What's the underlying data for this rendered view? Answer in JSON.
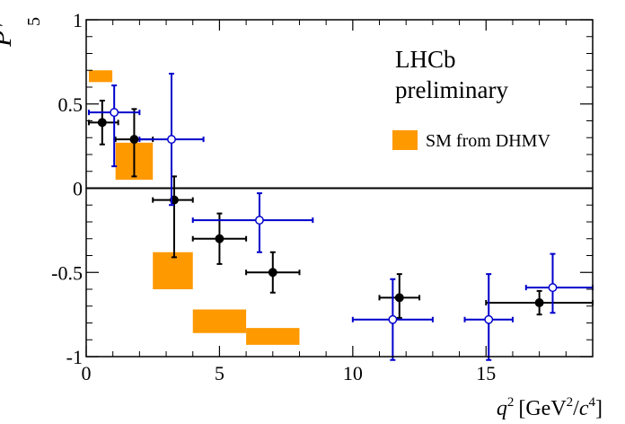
{
  "chart_data": {
    "type": "scatter",
    "xlabel": {
      "q": "q",
      "q_sup": "2",
      "open": "[GeV",
      "gev_sup": "2",
      "slash": "/",
      "c": "c",
      "c_sup": "4",
      "close": "]"
    },
    "ylabel": {
      "p": "P",
      "prime": "′",
      "sub": "5"
    },
    "xlim": [
      0,
      19
    ],
    "ylim": [
      -1,
      1
    ],
    "x_ticks": [
      0,
      5,
      10,
      15
    ],
    "x_tick_labels": [
      "0",
      "5",
      "10",
      "15"
    ],
    "y_ticks": [
      -1,
      -0.5,
      0,
      0.5,
      1
    ],
    "y_tick_labels": [
      "-1",
      "-0.5",
      "0",
      "0.5",
      "1"
    ],
    "zero_line": true,
    "grid": false,
    "annotation": [
      "LHCb",
      "preliminary"
    ],
    "legend": {
      "position": "top-right",
      "label": "SM from DHMV",
      "color": "#FF9900"
    },
    "colors": {
      "sm_band": "#FF9900",
      "black_series": "#000000",
      "blue_series": "#0000CC"
    },
    "sm_bands": [
      {
        "x": [
          0.1,
          0.98
        ],
        "y": [
          0.63,
          0.7
        ]
      },
      {
        "x": [
          1.1,
          2.5
        ],
        "y": [
          0.05,
          0.27
        ]
      },
      {
        "x": [
          2.5,
          4.0
        ],
        "y": [
          -0.6,
          -0.38
        ]
      },
      {
        "x": [
          4.0,
          6.0
        ],
        "y": [
          -0.86,
          -0.72
        ]
      },
      {
        "x": [
          6.0,
          8.0
        ],
        "y": [
          -0.93,
          -0.83
        ]
      }
    ],
    "series": [
      {
        "marker": "filled",
        "points": [
          {
            "x": 0.6,
            "y": 0.39,
            "xerr": [
              0.5,
              0.6
            ],
            "yerr": [
              0.13,
              0.13
            ]
          },
          {
            "x": 1.8,
            "y": 0.29,
            "xerr": [
              0.7,
              0.7
            ],
            "yerr": [
              0.22,
              0.18
            ]
          },
          {
            "x": 3.3,
            "y": -0.07,
            "xerr": [
              0.8,
              0.7
            ],
            "yerr": [
              0.34,
              0.14
            ]
          },
          {
            "x": 5.0,
            "y": -0.3,
            "xerr": [
              1.0,
              1.0
            ],
            "yerr": [
              0.15,
              0.15
            ]
          },
          {
            "x": 7.0,
            "y": -0.5,
            "xerr": [
              1.0,
              1.0
            ],
            "yerr": [
              0.12,
              0.12
            ]
          },
          {
            "x": 11.75,
            "y": -0.65,
            "xerr": [
              0.75,
              0.75
            ],
            "yerr": [
              0.12,
              0.14
            ]
          },
          {
            "x": 17.0,
            "y": -0.68,
            "xerr": [
              2.0,
              2.0
            ],
            "yerr": [
              0.07,
              0.07
            ]
          }
        ]
      },
      {
        "marker": "open",
        "points": [
          {
            "x": 1.05,
            "y": 0.45,
            "xerr": [
              0.95,
              0.95
            ],
            "yerr": [
              0.32,
              0.16
            ]
          },
          {
            "x": 3.2,
            "y": 0.29,
            "xerr": [
              1.2,
              1.2
            ],
            "yerr": [
              0.39,
              0.39
            ]
          },
          {
            "x": 6.5,
            "y": -0.19,
            "xerr": [
              2.5,
              2.0
            ],
            "yerr": [
              0.19,
              0.16
            ]
          },
          {
            "x": 11.5,
            "y": -0.78,
            "xerr": [
              1.5,
              1.5
            ],
            "yerr": [
              0.24,
              0.24
            ]
          },
          {
            "x": 15.1,
            "y": -0.78,
            "xerr": [
              0.9,
              0.9
            ],
            "yerr": [
              0.24,
              0.27
            ]
          },
          {
            "x": 17.5,
            "y": -0.59,
            "xerr": [
              1.0,
              1.5
            ],
            "yerr": [
              0.15,
              0.2
            ]
          }
        ]
      }
    ]
  }
}
